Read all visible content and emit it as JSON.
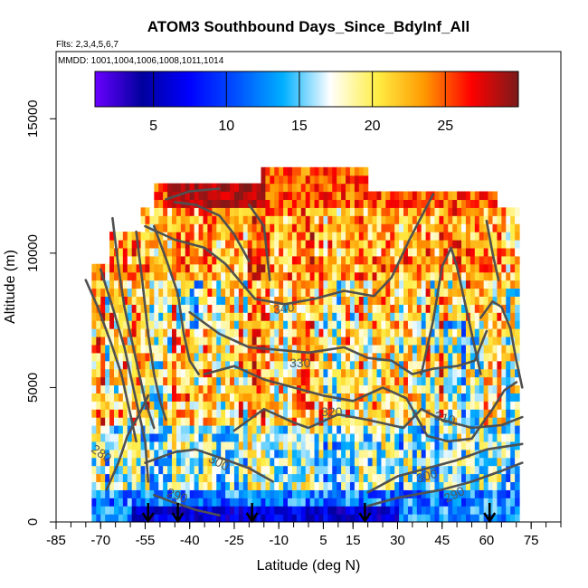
{
  "chart_data": {
    "type": "heatmap",
    "title": "ATOM3 Southbound Days_Since_BdyInf_All",
    "flights_label": "Flts: 2,3,4,5,6,7",
    "dates_label": "MMDD: 1001,1004,1006,1008,1011,1014",
    "xlabel": "Latitude (deg N)",
    "ylabel": "Altitude (m)",
    "xlim": [
      -85,
      85
    ],
    "ylim": [
      0,
      17500
    ],
    "x_ticks": [
      "-85",
      "-70",
      "-55",
      "-40",
      "-25",
      "-10",
      "5",
      "15",
      "30",
      "45",
      "60",
      "75"
    ],
    "x_tick_values": [
      -85,
      -70,
      -55,
      -40,
      -25,
      -10,
      5,
      15,
      30,
      45,
      60,
      75
    ],
    "y_ticks": [
      "0",
      "5000",
      "10000",
      "15000"
    ],
    "y_tick_values": [
      0,
      5000,
      10000,
      15000
    ],
    "colorbar": {
      "range": [
        1,
        30
      ],
      "tick_labels": [
        "5",
        "10",
        "15",
        "20",
        "25"
      ],
      "tick_values": [
        5,
        10,
        15,
        20,
        25
      ],
      "colors": [
        "#6a00ff",
        "#00009e",
        "#0000ff",
        "#0050ff",
        "#00b0ff",
        "#ffffff",
        "#ffee44",
        "#ff9900",
        "#ff0000",
        "#7a1a1a"
      ]
    },
    "contour_labels": [
      "340",
      "330",
      "320",
      "310",
      "300",
      "290",
      "280",
      "300",
      "290"
    ],
    "contours": [
      {
        "level": "290",
        "points": [
          [
            -52,
            1000
          ],
          [
            -46,
            750
          ],
          [
            -38,
            450
          ],
          [
            -30,
            250
          ]
        ]
      },
      {
        "level": "290",
        "points": [
          [
            20,
            600
          ],
          [
            30,
            900
          ],
          [
            45,
            1200
          ],
          [
            55,
            1500
          ],
          [
            65,
            1900
          ],
          [
            72,
            2200
          ]
        ]
      },
      {
        "level": "280",
        "points": [
          [
            -68,
            1200
          ],
          [
            -64,
            2200
          ],
          [
            -61,
            3200
          ],
          [
            -57,
            4000
          ],
          [
            -54,
            4700
          ]
        ]
      },
      {
        "level": "300",
        "points": [
          [
            -55,
            2200
          ],
          [
            -45,
            2600
          ],
          [
            -38,
            2700
          ],
          [
            -30,
            2400
          ],
          [
            -20,
            2000
          ],
          [
            -12,
            1500
          ]
        ]
      },
      {
        "level": "300",
        "points": [
          [
            20,
            1100
          ],
          [
            30,
            1700
          ],
          [
            40,
            2000
          ],
          [
            50,
            2300
          ],
          [
            60,
            2700
          ],
          [
            72,
            2900
          ]
        ]
      },
      {
        "level": "310",
        "points": [
          [
            -25,
            3400
          ],
          [
            -15,
            4200
          ],
          [
            -5,
            3700
          ],
          [
            0,
            3500
          ],
          [
            10,
            4000
          ],
          [
            20,
            3800
          ],
          [
            32,
            3500
          ],
          [
            38,
            4200
          ],
          [
            45,
            3800
          ],
          [
            55,
            3500
          ],
          [
            65,
            3600
          ],
          [
            72,
            3900
          ]
        ]
      },
      {
        "level": "320",
        "points": [
          [
            -35,
            5500
          ],
          [
            -25,
            5800
          ],
          [
            -15,
            5300
          ],
          [
            -5,
            5000
          ],
          [
            5,
            4700
          ],
          [
            15,
            4500
          ],
          [
            25,
            5000
          ],
          [
            33,
            4600
          ],
          [
            40,
            3200
          ],
          [
            47,
            3000
          ],
          [
            55,
            3100
          ],
          [
            62,
            4200
          ],
          [
            66,
            4900
          ],
          [
            70,
            5200
          ]
        ]
      },
      {
        "level": "330",
        "points": [
          [
            -40,
            7800
          ],
          [
            -30,
            7000
          ],
          [
            -20,
            6500
          ],
          [
            -10,
            6400
          ],
          [
            0,
            6300
          ],
          [
            12,
            6500
          ],
          [
            20,
            6100
          ],
          [
            28,
            6000
          ],
          [
            35,
            5500
          ],
          [
            42,
            5700
          ],
          [
            50,
            5800
          ],
          [
            56,
            6000
          ],
          [
            60,
            7100
          ]
        ]
      },
      {
        "level": "340",
        "points": [
          [
            -55,
            11000
          ],
          [
            -45,
            10500
          ],
          [
            -35,
            10200
          ],
          [
            -28,
            9600
          ],
          [
            -18,
            8300
          ],
          [
            -8,
            8100
          ],
          [
            2,
            8300
          ],
          [
            12,
            8600
          ],
          [
            22,
            8400
          ],
          [
            28,
            9100
          ],
          [
            34,
            10500
          ],
          [
            42,
            12200
          ]
        ]
      },
      {
        "level": "",
        "points": [
          [
            -75,
            9000
          ],
          [
            -71,
            8000
          ],
          [
            -66,
            6500
          ],
          [
            -63,
            5500
          ],
          [
            -60,
            4000
          ],
          [
            -58,
            3000
          ]
        ]
      },
      {
        "level": "",
        "points": [
          [
            -70,
            9400
          ],
          [
            -66,
            8000
          ],
          [
            -62,
            6500
          ],
          [
            -59,
            5000
          ],
          [
            -57,
            4000
          ],
          [
            -55,
            3000
          ],
          [
            -54,
            1500
          ]
        ]
      },
      {
        "level": "",
        "points": [
          [
            -58,
            10800
          ],
          [
            -56,
            9000
          ],
          [
            -54,
            7000
          ],
          [
            -52,
            5500
          ],
          [
            -50,
            4500
          ],
          [
            -48,
            3800
          ]
        ]
      },
      {
        "level": "",
        "points": [
          [
            -66,
            11300
          ],
          [
            -64,
            9500
          ],
          [
            -62,
            8000
          ],
          [
            -58,
            6000
          ],
          [
            -55,
            4500
          ],
          [
            -52,
            3500
          ]
        ]
      },
      {
        "level": "",
        "points": [
          [
            -52,
            11000
          ],
          [
            -48,
            9800
          ],
          [
            -44,
            8500
          ],
          [
            -42,
            7000
          ],
          [
            -40,
            6000
          ],
          [
            -37,
            5500
          ]
        ]
      },
      {
        "level": "",
        "points": [
          [
            -45,
            11900
          ],
          [
            -38,
            11800
          ],
          [
            -30,
            11400
          ],
          [
            -25,
            10700
          ],
          [
            -20,
            9700
          ]
        ]
      },
      {
        "level": "",
        "points": [
          [
            -48,
            12000
          ],
          [
            -40,
            12300
          ],
          [
            -30,
            12400
          ]
        ]
      },
      {
        "level": "",
        "points": [
          [
            -20,
            11800
          ],
          [
            -15,
            11000
          ],
          [
            -14,
            10000
          ],
          [
            -13,
            9000
          ]
        ]
      },
      {
        "level": "",
        "points": [
          [
            38,
            5500
          ],
          [
            42,
            7500
          ],
          [
            45,
            9500
          ],
          [
            48,
            10200
          ],
          [
            50,
            9500
          ],
          [
            53,
            8000
          ],
          [
            56,
            6500
          ],
          [
            58,
            5500
          ]
        ]
      },
      {
        "level": "",
        "points": [
          [
            58,
            7600
          ],
          [
            62,
            8200
          ],
          [
            65,
            8000
          ],
          [
            68,
            7200
          ],
          [
            70,
            6000
          ],
          [
            72,
            5000
          ]
        ]
      },
      {
        "level": "",
        "points": [
          [
            60,
            11200
          ],
          [
            62,
            10000
          ],
          [
            64,
            9000
          ]
        ]
      }
    ],
    "arrow_latitudes": [
      -54,
      -44,
      -19,
      19,
      61
    ]
  }
}
